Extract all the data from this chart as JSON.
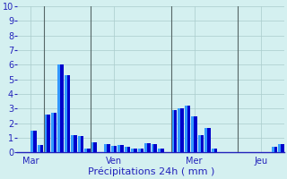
{
  "xlabel": "Précipitations 24h ( mm )",
  "background_color": "#d4f0f0",
  "bar_color_dark": "#0000cc",
  "bar_color_light": "#3399ff",
  "ylim": [
    0,
    10
  ],
  "yticks": [
    0,
    1,
    2,
    3,
    4,
    5,
    6,
    7,
    8,
    9,
    10
  ],
  "day_labels": [
    "Mar",
    "Ven",
    "Mer",
    "Jeu"
  ],
  "grid_color": "#aacccc",
  "text_color": "#2222bb",
  "font_size_label": 8,
  "font_size_tick": 7,
  "bar_values": [
    0.0,
    0.0,
    1.5,
    0.5,
    2.6,
    2.7,
    6.0,
    5.3,
    1.2,
    1.1,
    0.3,
    0.7,
    0.0,
    0.6,
    0.45,
    0.5,
    0.4,
    0.3,
    0.3,
    0.65,
    0.6,
    0.3,
    0.0,
    2.9,
    3.0,
    3.2,
    2.5,
    1.2,
    1.7,
    0.3,
    0.0,
    0.0,
    0.0,
    0.0,
    0.0,
    0.0,
    0.0,
    0.0,
    0.4,
    0.6
  ]
}
